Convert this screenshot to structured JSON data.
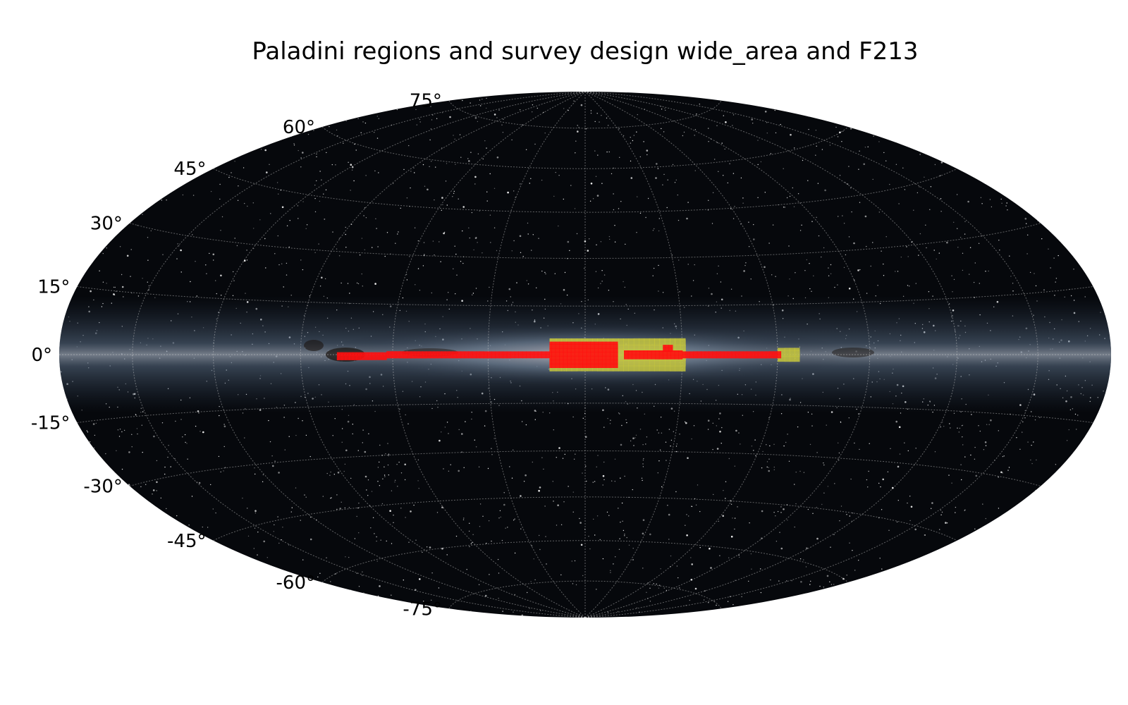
{
  "chart_data": {
    "type": "scatter",
    "projection": "hammer-aitoff all-sky",
    "title": "Paladini regions and survey design wide_area and F213",
    "xlabel": "",
    "ylabel": "",
    "background": "all-sky Milky Way image",
    "grid": true,
    "latitude_ticks": [
      "75°",
      "60°",
      "45°",
      "30°",
      "15°",
      "0°",
      "-15°",
      "-30°",
      "-45°",
      "-60°",
      "-75°"
    ],
    "latitude_tick_values": [
      75,
      60,
      45,
      30,
      15,
      0,
      -15,
      -30,
      -45,
      -60,
      -75
    ],
    "longitude_grid_deg": [
      -150,
      -120,
      -90,
      -60,
      -30,
      0,
      30,
      60,
      90,
      120,
      150
    ],
    "ylim": [
      -90,
      90
    ],
    "xlim": [
      -180,
      180
    ],
    "series": [
      {
        "role": "Paladini regions",
        "color": "#c8c83a",
        "regions": [
          {
            "lon": [
              -67,
              -60
            ],
            "lat": [
              -2,
              2
            ]
          },
          {
            "lon": [
              -31,
              11
            ],
            "lat": [
              -5,
              5
            ]
          }
        ]
      },
      {
        "role": "wide_area F213",
        "color": "#ff1010",
        "regions": [
          {
            "lon": [
              -61,
              -30
            ],
            "lat": [
              -1,
              1
            ]
          },
          {
            "lon": [
              -30,
              -12
            ],
            "lat": [
              -1.3,
              1.3
            ]
          },
          {
            "lon": [
              -27,
              -24
            ],
            "lat": [
              1,
              3
            ]
          },
          {
            "lon": [
              -10,
              11
            ],
            "lat": [
              -4,
              4
            ]
          },
          {
            "lon": [
              11,
              62
            ],
            "lat": [
              -1,
              1
            ]
          },
          {
            "lon": [
              62,
              78
            ],
            "lat": [
              -1.5,
              0.7
            ]
          }
        ]
      }
    ]
  }
}
